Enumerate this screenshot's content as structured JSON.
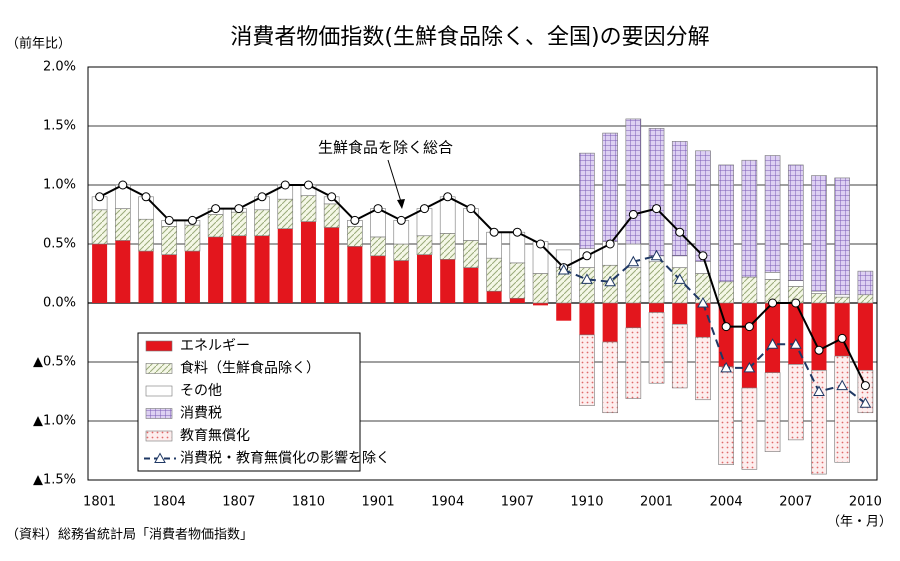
{
  "chart_data": {
    "type": "bar",
    "title": "消費者物価指数(生鮮食品除く、全国)の要因分解",
    "y_label": "（前年比）",
    "x_label": "（年・月）",
    "source": "（資料）総務省統計局「消費者物価指数」",
    "categories": [
      "1801",
      null,
      null,
      "1804",
      null,
      null,
      "1807",
      null,
      null,
      "1810",
      null,
      null,
      "1901",
      null,
      null,
      "1904",
      null,
      null,
      "1907",
      null,
      null,
      "1910",
      null,
      null,
      "2001",
      null,
      null,
      "2004",
      null,
      null,
      "2007",
      null,
      null,
      "2010"
    ],
    "ylim": [
      -1.5,
      2.0
    ],
    "yticks": [
      {
        "value": 2.0,
        "label": "2.0%"
      },
      {
        "value": 1.5,
        "label": "1.5%"
      },
      {
        "value": 1.0,
        "label": "1.0%"
      },
      {
        "value": 0.5,
        "label": "0.5%"
      },
      {
        "value": 0.0,
        "label": "0.0%"
      },
      {
        "value": -0.5,
        "label": "▲0.5%"
      },
      {
        "value": -1.0,
        "label": "▲1.0%"
      },
      {
        "value": -1.5,
        "label": "▲1.5%"
      }
    ],
    "grid": true,
    "legend": "lower-left",
    "series": [
      {
        "name": "エネルギー",
        "type": "bar",
        "pattern": "solid",
        "color": "#e3161d",
        "values": [
          0.5,
          0.53,
          0.44,
          0.41,
          0.44,
          0.56,
          0.57,
          0.57,
          0.63,
          0.69,
          0.64,
          0.48,
          0.4,
          0.36,
          0.41,
          0.37,
          0.3,
          0.1,
          0.04,
          -0.02,
          -0.15,
          -0.27,
          -0.33,
          -0.21,
          -0.08,
          -0.18,
          -0.29,
          -0.54,
          -0.72,
          -0.59,
          -0.52,
          -0.57,
          -0.45,
          -0.57
        ]
      },
      {
        "name": "食料（生鮮食品除く）",
        "type": "bar",
        "pattern": "hatch",
        "color": "#9aab7a",
        "values": [
          0.29,
          0.27,
          0.27,
          0.24,
          0.22,
          0.19,
          0.2,
          0.22,
          0.25,
          0.22,
          0.2,
          0.17,
          0.16,
          0.14,
          0.16,
          0.22,
          0.23,
          0.28,
          0.3,
          0.25,
          0.3,
          0.3,
          0.32,
          0.3,
          0.35,
          0.3,
          0.25,
          0.18,
          0.22,
          0.2,
          0.14,
          0.08,
          0.05,
          0.07
        ]
      },
      {
        "name": "その他",
        "type": "bar",
        "pattern": "solid",
        "color": "#ffffff",
        "values": [
          0.11,
          0.2,
          0.19,
          0.05,
          0.04,
          0.05,
          0.03,
          0.11,
          0.12,
          0.09,
          0.06,
          0.05,
          0.24,
          0.2,
          0.23,
          0.31,
          0.27,
          0.22,
          0.26,
          0.27,
          0.15,
          0.16,
          0.2,
          0.2,
          0.05,
          0.1,
          0.1,
          0,
          0,
          0.06,
          0.05,
          0.02,
          0.02,
          0
        ]
      },
      {
        "name": "消費税",
        "type": "bar",
        "pattern": "grid",
        "color": "#7a5bb5",
        "values": [
          0,
          0,
          0,
          0,
          0,
          0,
          0,
          0,
          0,
          0,
          0,
          0,
          0,
          0,
          0,
          0,
          0,
          0,
          0,
          0,
          0,
          0.81,
          0.92,
          1.06,
          1.08,
          0.97,
          0.94,
          0.99,
          0.99,
          0.99,
          0.98,
          0.98,
          0.99,
          0.2
        ]
      },
      {
        "name": "教育無償化",
        "type": "bar",
        "pattern": "dots",
        "color": "#e06a6a",
        "values": [
          0,
          0,
          0,
          0,
          0,
          0,
          0,
          0,
          0,
          0,
          0,
          0,
          0,
          0,
          0,
          0,
          0,
          0,
          0,
          0,
          0,
          -0.6,
          -0.6,
          -0.6,
          -0.6,
          -0.54,
          -0.53,
          -0.83,
          -0.69,
          -0.67,
          -0.64,
          -0.88,
          -0.9,
          -0.36
        ]
      },
      {
        "name": "生鮮食品を除く総合",
        "type": "line",
        "marker": "circle",
        "dashed": false,
        "color": "#000000",
        "values": [
          0.9,
          1.0,
          0.9,
          0.7,
          0.7,
          0.8,
          0.8,
          0.9,
          1.0,
          1.0,
          0.9,
          0.7,
          0.8,
          0.7,
          0.8,
          0.9,
          0.8,
          0.6,
          0.6,
          0.5,
          0.3,
          0.4,
          0.5,
          0.75,
          0.8,
          0.6,
          0.4,
          -0.2,
          -0.2,
          0.0,
          0.0,
          -0.4,
          -0.3,
          -0.7
        ]
      },
      {
        "name": "消費税・教育無償化の影響を除く",
        "type": "line",
        "marker": "triangle",
        "dashed": true,
        "color": "#1f3864",
        "values": [
          null,
          null,
          null,
          null,
          null,
          null,
          null,
          null,
          null,
          null,
          null,
          null,
          null,
          null,
          null,
          null,
          null,
          null,
          null,
          null,
          0.28,
          0.2,
          0.18,
          0.35,
          0.4,
          0.2,
          0.0,
          -0.55,
          -0.55,
          -0.35,
          -0.35,
          -0.75,
          -0.7,
          -0.85
        ]
      }
    ]
  }
}
